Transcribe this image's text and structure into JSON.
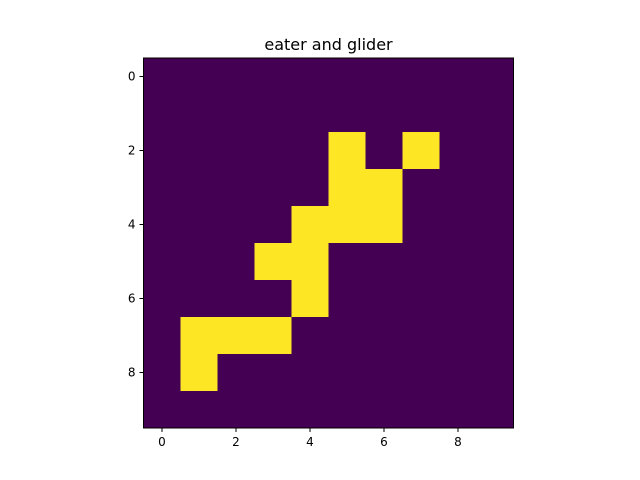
{
  "chart_data": {
    "type": "heatmap",
    "title": "eater and glider",
    "xlabel": "",
    "ylabel": "",
    "rows": 10,
    "cols": 10,
    "x_ticks": [
      0,
      2,
      4,
      6,
      8
    ],
    "y_ticks": [
      0,
      2,
      4,
      6,
      8
    ],
    "xlim": [
      -0.5,
      9.5
    ],
    "ylim": [
      9.5,
      -0.5
    ],
    "grid": false,
    "colormap": "viridis",
    "colors": {
      "off": "#440154",
      "on": "#fde725"
    },
    "values": [
      [
        0,
        0,
        0,
        0,
        0,
        0,
        0,
        0,
        0,
        0
      ],
      [
        0,
        0,
        0,
        0,
        0,
        0,
        0,
        0,
        0,
        0
      ],
      [
        0,
        0,
        0,
        0,
        0,
        1,
        0,
        1,
        0,
        0
      ],
      [
        0,
        0,
        0,
        0,
        0,
        1,
        1,
        0,
        0,
        0
      ],
      [
        0,
        0,
        0,
        0,
        1,
        1,
        1,
        0,
        0,
        0
      ],
      [
        0,
        0,
        0,
        1,
        1,
        0,
        0,
        0,
        0,
        0
      ],
      [
        0,
        0,
        0,
        0,
        1,
        0,
        0,
        0,
        0,
        0
      ],
      [
        0,
        1,
        1,
        1,
        0,
        0,
        0,
        0,
        0,
        0
      ],
      [
        0,
        1,
        0,
        0,
        0,
        0,
        0,
        0,
        0,
        0
      ],
      [
        0,
        0,
        0,
        0,
        0,
        0,
        0,
        0,
        0,
        0
      ]
    ]
  }
}
